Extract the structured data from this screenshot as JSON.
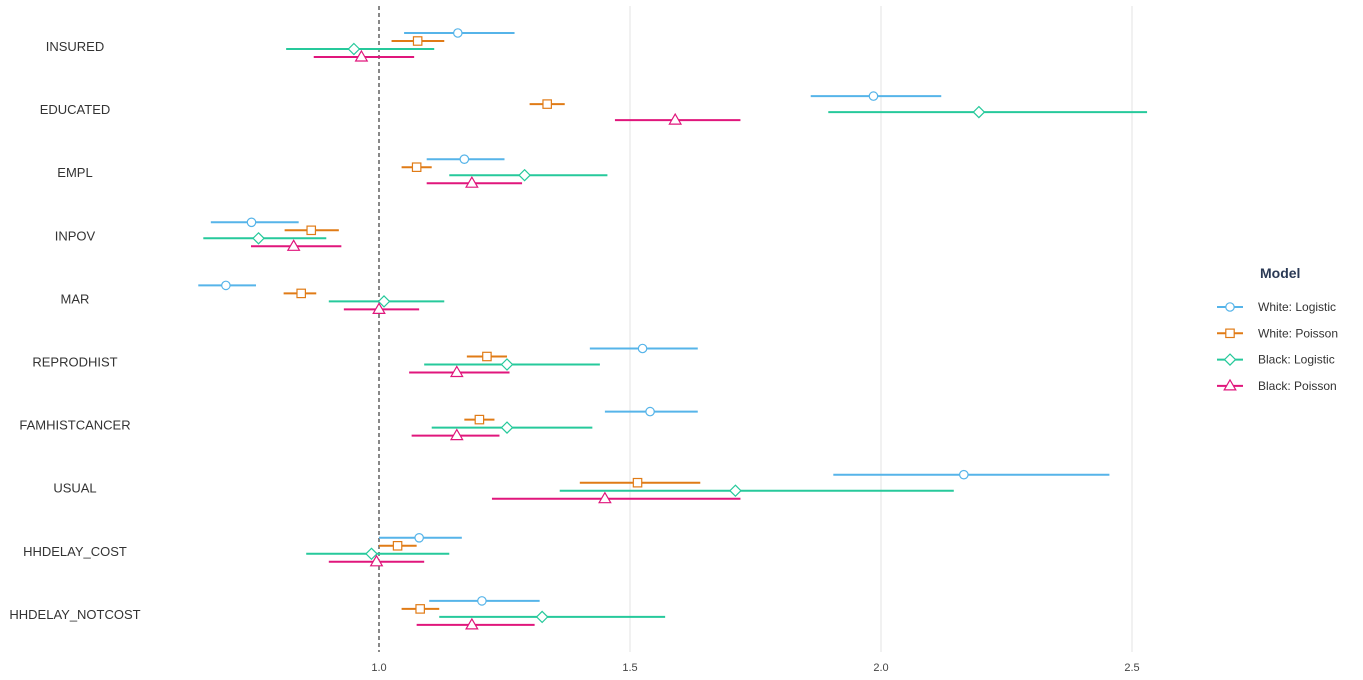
{
  "chart_data": {
    "type": "forest",
    "title": "",
    "xlabel": "",
    "ylabel": "",
    "xlim": [
      0.6,
      2.6
    ],
    "reference_line": 1.0,
    "x_ticks": [
      1.0,
      1.5,
      2.0,
      2.5
    ],
    "x_tick_labels": [
      "1.0",
      "1.5",
      "2.0",
      "2.5"
    ],
    "grid": "vertical major lines",
    "categories": [
      "INSURED",
      "EDUCATED",
      "EMPL",
      "INPOV",
      "MAR",
      "REPRODHIST",
      "FAMHISTCANCER",
      "USUAL",
      "HHDELAY_COST",
      "HHDELAY_NOTCOST"
    ],
    "legend": {
      "title": "Model",
      "placement": "right"
    },
    "series": [
      {
        "name": "White: Logistic",
        "color": "#56b4e9",
        "marker": "circle",
        "values": [
          {
            "est": 1.157,
            "lo": 1.05,
            "hi": 1.27
          },
          {
            "est": 1.985,
            "lo": 1.86,
            "hi": 2.12
          },
          {
            "est": 1.17,
            "lo": 1.095,
            "hi": 1.25
          },
          {
            "est": 0.746,
            "lo": 0.665,
            "hi": 0.84
          },
          {
            "est": 0.695,
            "lo": 0.64,
            "hi": 0.755
          },
          {
            "est": 1.525,
            "lo": 1.42,
            "hi": 1.635
          },
          {
            "est": 1.54,
            "lo": 1.45,
            "hi": 1.635
          },
          {
            "est": 2.165,
            "lo": 1.905,
            "hi": 2.455
          },
          {
            "est": 1.08,
            "lo": 1.0,
            "hi": 1.165
          },
          {
            "est": 1.205,
            "lo": 1.1,
            "hi": 1.32
          }
        ]
      },
      {
        "name": "White: Poisson",
        "color": "#e07b16",
        "marker": "square",
        "values": [
          {
            "est": 1.077,
            "lo": 1.025,
            "hi": 1.13
          },
          {
            "est": 1.335,
            "lo": 1.3,
            "hi": 1.37
          },
          {
            "est": 1.075,
            "lo": 1.045,
            "hi": 1.105
          },
          {
            "est": 0.865,
            "lo": 0.812,
            "hi": 0.92
          },
          {
            "est": 0.845,
            "lo": 0.81,
            "hi": 0.875
          },
          {
            "est": 1.215,
            "lo": 1.175,
            "hi": 1.255
          },
          {
            "est": 1.2,
            "lo": 1.17,
            "hi": 1.23
          },
          {
            "est": 1.515,
            "lo": 1.4,
            "hi": 1.64
          },
          {
            "est": 1.037,
            "lo": 1.0,
            "hi": 1.075
          },
          {
            "est": 1.082,
            "lo": 1.045,
            "hi": 1.12
          }
        ]
      },
      {
        "name": "Black: Logistic",
        "color": "#26c99b",
        "marker": "diamond",
        "values": [
          {
            "est": 0.95,
            "lo": 0.815,
            "hi": 1.11
          },
          {
            "est": 2.195,
            "lo": 1.895,
            "hi": 2.53
          },
          {
            "est": 1.29,
            "lo": 1.14,
            "hi": 1.455
          },
          {
            "est": 0.76,
            "lo": 0.65,
            "hi": 0.895
          },
          {
            "est": 1.01,
            "lo": 0.9,
            "hi": 1.13
          },
          {
            "est": 1.255,
            "lo": 1.09,
            "hi": 1.44
          },
          {
            "est": 1.255,
            "lo": 1.105,
            "hi": 1.425
          },
          {
            "est": 1.71,
            "lo": 1.36,
            "hi": 2.145
          },
          {
            "est": 0.985,
            "lo": 0.855,
            "hi": 1.14
          },
          {
            "est": 1.325,
            "lo": 1.12,
            "hi": 1.57
          }
        ]
      },
      {
        "name": "Black: Poisson",
        "color": "#e0167c",
        "marker": "triangle",
        "values": [
          {
            "est": 0.965,
            "lo": 0.87,
            "hi": 1.07
          },
          {
            "est": 1.59,
            "lo": 1.47,
            "hi": 1.72
          },
          {
            "est": 1.185,
            "lo": 1.095,
            "hi": 1.285
          },
          {
            "est": 0.83,
            "lo": 0.745,
            "hi": 0.925
          },
          {
            "est": 1.0,
            "lo": 0.93,
            "hi": 1.08
          },
          {
            "est": 1.155,
            "lo": 1.06,
            "hi": 1.26
          },
          {
            "est": 1.155,
            "lo": 1.065,
            "hi": 1.24
          },
          {
            "est": 1.45,
            "lo": 1.225,
            "hi": 1.72
          },
          {
            "est": 0.995,
            "lo": 0.9,
            "hi": 1.09
          },
          {
            "est": 1.185,
            "lo": 1.075,
            "hi": 1.31
          }
        ]
      }
    ]
  }
}
